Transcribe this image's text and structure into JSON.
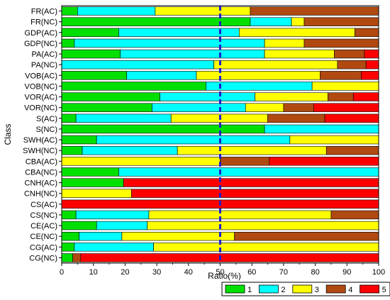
{
  "chart_data": {
    "type": "bar",
    "orientation": "horizontal",
    "stacked": true,
    "xlabel": "Ratio(%)",
    "ylabel": "Class",
    "xlim": [
      0,
      100
    ],
    "xticks": [
      "0",
      "10",
      "20",
      "30",
      "40",
      "50",
      "60",
      "70",
      "80",
      "90",
      "100"
    ],
    "reference_line": {
      "x": 50,
      "style": "dashed",
      "color": "#1f1fcc"
    },
    "legend_position": "bottom-right",
    "colors": [
      "#00e000",
      "#00ffff",
      "#ffff00",
      "#b04a10",
      "#ff0000"
    ],
    "series_names": [
      "1",
      "2",
      "3",
      "4",
      "5"
    ],
    "categories": [
      "FR(AC)",
      "FR(NC)",
      "GDP(AC)",
      "GDP(NC)",
      "PA(AC)",
      "PA(NC)",
      "VOB(AC)",
      "VOB(NC)",
      "VOR(AC)",
      "VOR(NC)",
      "S(AC)",
      "S(NC)",
      "SWH(AC)",
      "SWH(NC)",
      "CBA(AC)",
      "CBA(NC)",
      "CNH(AC)",
      "CNH(NC)",
      "CS(AC)",
      "CS(NC)",
      "CE(AC)",
      "CE(NC)",
      "CG(AC)",
      "CG(NC)"
    ],
    "values": [
      [
        5,
        24.5,
        30,
        40.5,
        0
      ],
      [
        59.5,
        13,
        4,
        23.5,
        0
      ],
      [
        18,
        38,
        36.5,
        7.5,
        0
      ],
      [
        4,
        60,
        12.5,
        23.5,
        0
      ],
      [
        18.5,
        45.5,
        22,
        9.5,
        4.5
      ],
      [
        0,
        48,
        39,
        9,
        4
      ],
      [
        20.5,
        22,
        39,
        13,
        5.5
      ],
      [
        45.5,
        33.5,
        21,
        0,
        0
      ],
      [
        31,
        30,
        23,
        8,
        8
      ],
      [
        28.5,
        29.5,
        12,
        9.5,
        20.5
      ],
      [
        4.5,
        30,
        30.5,
        18,
        17
      ],
      [
        64,
        36,
        0,
        0,
        0
      ],
      [
        11,
        61,
        28,
        0,
        0
      ],
      [
        6.5,
        30,
        47,
        16.5,
        0
      ],
      [
        0,
        0,
        50,
        15.5,
        34.5
      ],
      [
        18,
        82,
        0,
        0,
        0
      ],
      [
        19.5,
        0,
        0,
        0,
        80.5
      ],
      [
        0,
        0,
        22,
        0,
        78
      ],
      [
        0,
        0,
        0,
        0,
        100
      ],
      [
        4.5,
        23,
        57.5,
        15,
        0
      ],
      [
        11,
        16,
        73,
        0,
        0
      ],
      [
        5.5,
        13.5,
        35.5,
        45.5,
        0
      ],
      [
        4,
        25,
        71,
        0,
        0
      ],
      [
        3.5,
        0,
        0,
        2.5,
        94
      ]
    ]
  }
}
